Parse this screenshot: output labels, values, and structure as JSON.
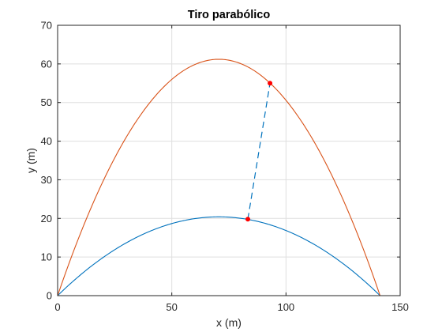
{
  "chart_data": {
    "type": "line",
    "title": "Tiro parabólico",
    "xlabel": "x (m)",
    "ylabel": "y (m)",
    "xlim": [
      0,
      150
    ],
    "ylim": [
      0,
      70
    ],
    "xticks": [
      0,
      50,
      100,
      150
    ],
    "yticks": [
      0,
      10,
      20,
      30,
      40,
      50,
      60,
      70
    ],
    "grid": true,
    "series": [
      {
        "color": "#0072BD",
        "kind": "parabola",
        "range": 141.2,
        "apex": [
          70.6,
          20.4
        ]
      },
      {
        "color": "#D95319",
        "kind": "parabola",
        "range": 141.2,
        "apex": [
          70.6,
          61.2
        ]
      }
    ],
    "markers": [
      {
        "x": 83.3,
        "y": 19.8,
        "color": "#ff0000"
      },
      {
        "x": 93.0,
        "y": 55.0,
        "color": "#ff0000"
      }
    ],
    "connector": {
      "from": [
        83.3,
        19.8
      ],
      "to": [
        93.0,
        55.0
      ],
      "color": "#0072BD",
      "style": "dashed"
    }
  }
}
